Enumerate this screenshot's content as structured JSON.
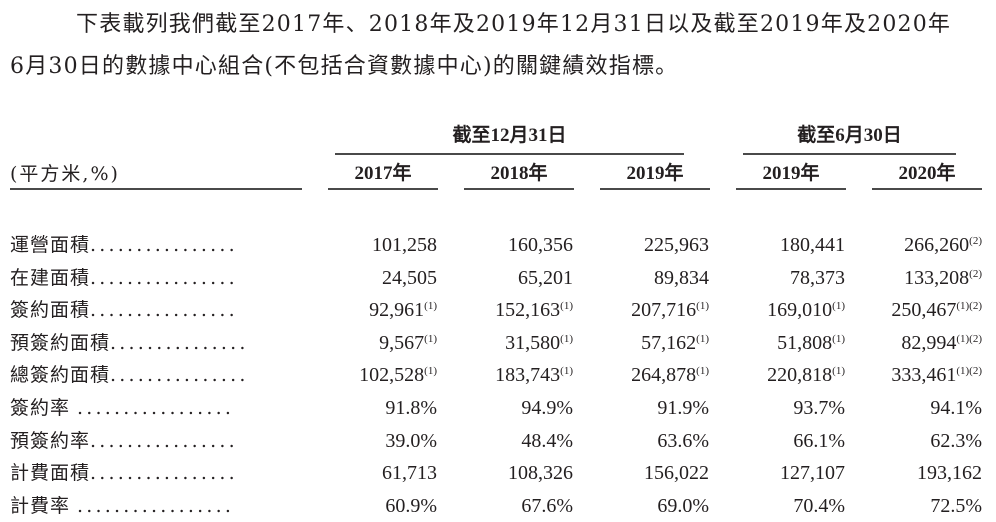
{
  "intro": {
    "line1": "下表載列我們截至2017年、2018年及2019年12月31日以及截至2019年及2020年",
    "line2": "6月30日的數據中心組合(不包括合資數據中心)的關鍵績效指標。"
  },
  "table": {
    "units_label": "(平方米,%)",
    "groups": [
      {
        "label": "截至12月31日"
      },
      {
        "label": "截至6月30日"
      }
    ],
    "columns": [
      "2017年",
      "2018年",
      "2019年",
      "2019年",
      "2020年"
    ],
    "rows": [
      {
        "label": "運營面積",
        "dots": "................",
        "cells": [
          {
            "v": "101,258",
            "n": ""
          },
          {
            "v": "160,356",
            "n": ""
          },
          {
            "v": "225,963",
            "n": ""
          },
          {
            "v": "180,441",
            "n": ""
          },
          {
            "v": "266,260",
            "n": "(2)"
          }
        ]
      },
      {
        "label": "在建面積",
        "dots": "................",
        "cells": [
          {
            "v": "24,505",
            "n": ""
          },
          {
            "v": "65,201",
            "n": ""
          },
          {
            "v": "89,834",
            "n": ""
          },
          {
            "v": "78,373",
            "n": ""
          },
          {
            "v": "133,208",
            "n": "(2)"
          }
        ]
      },
      {
        "label": "簽約面積",
        "dots": "................",
        "cells": [
          {
            "v": "92,961",
            "n": "(1)"
          },
          {
            "v": "152,163",
            "n": "(1)"
          },
          {
            "v": "207,716",
            "n": "(1)"
          },
          {
            "v": "169,010",
            "n": "(1)"
          },
          {
            "v": "250,467",
            "n": "(1)(2)"
          }
        ]
      },
      {
        "label": "預簽約面積",
        "dots": "...............",
        "cells": [
          {
            "v": "9,567",
            "n": "(1)"
          },
          {
            "v": "31,580",
            "n": "(1)"
          },
          {
            "v": "57,162",
            "n": "(1)"
          },
          {
            "v": "51,808",
            "n": "(1)"
          },
          {
            "v": "82,994",
            "n": "(1)(2)"
          }
        ]
      },
      {
        "label": "總簽約面積",
        "dots": "...............",
        "cells": [
          {
            "v": "102,528",
            "n": "(1)"
          },
          {
            "v": "183,743",
            "n": "(1)"
          },
          {
            "v": "264,878",
            "n": "(1)"
          },
          {
            "v": "220,818",
            "n": "(1)"
          },
          {
            "v": "333,461",
            "n": "(1)(2)"
          }
        ]
      },
      {
        "label": "簽約率 ",
        "dots": ".................",
        "cells": [
          {
            "v": "91.8%",
            "n": ""
          },
          {
            "v": "94.9%",
            "n": ""
          },
          {
            "v": "91.9%",
            "n": ""
          },
          {
            "v": "93.7%",
            "n": ""
          },
          {
            "v": "94.1%",
            "n": ""
          }
        ]
      },
      {
        "label": "預簽約率",
        "dots": "................",
        "cells": [
          {
            "v": "39.0%",
            "n": ""
          },
          {
            "v": "48.4%",
            "n": ""
          },
          {
            "v": "63.6%",
            "n": ""
          },
          {
            "v": "66.1%",
            "n": ""
          },
          {
            "v": "62.3%",
            "n": ""
          }
        ]
      },
      {
        "label": "計費面積",
        "dots": "................",
        "cells": [
          {
            "v": "61,713",
            "n": ""
          },
          {
            "v": "108,326",
            "n": ""
          },
          {
            "v": "156,022",
            "n": ""
          },
          {
            "v": "127,107",
            "n": ""
          },
          {
            "v": "193,162",
            "n": ""
          }
        ]
      },
      {
        "label": "計費率 ",
        "dots": ".................",
        "cells": [
          {
            "v": "60.9%",
            "n": ""
          },
          {
            "v": "67.6%",
            "n": ""
          },
          {
            "v": "69.0%",
            "n": ""
          },
          {
            "v": "70.4%",
            "n": ""
          },
          {
            "v": "72.5%",
            "n": ""
          }
        ]
      }
    ]
  }
}
